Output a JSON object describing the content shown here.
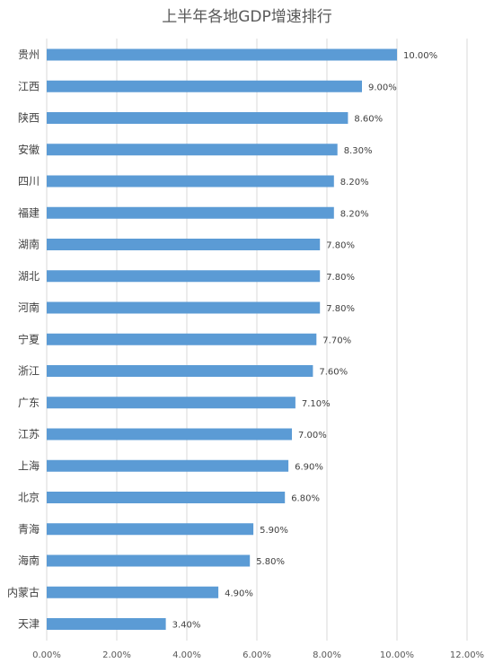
{
  "chart_data": {
    "type": "bar",
    "orientation": "horizontal",
    "title": "上半年各地GDP增速排行",
    "xlabel": "",
    "ylabel": "",
    "xlim": [
      0,
      12
    ],
    "x_ticks": [
      "0.00%",
      "2.00%",
      "4.00%",
      "6.00%",
      "8.00%",
      "10.00%",
      "12.00%"
    ],
    "grid": "vertical",
    "bar_color": "#5b9bd5",
    "categories": [
      "贵州",
      "江西",
      "陕西",
      "安徽",
      "四川",
      "福建",
      "湖南",
      "湖北",
      "河南",
      "宁夏",
      "浙江",
      "广东",
      "江苏",
      "上海",
      "北京",
      "青海",
      "海南",
      "内蒙古",
      "天津"
    ],
    "values": [
      10.0,
      9.0,
      8.6,
      8.3,
      8.2,
      8.2,
      7.8,
      7.8,
      7.8,
      7.7,
      7.6,
      7.1,
      7.0,
      6.9,
      6.8,
      5.9,
      5.8,
      4.9,
      3.4
    ],
    "data_labels": [
      "10.00%",
      "9.00%",
      "8.60%",
      "8.30%",
      "8.20%",
      "8.20%",
      "7.80%",
      "7.80%",
      "7.80%",
      "7.70%",
      "7.60%",
      "7.10%",
      "7.00%",
      "6.90%",
      "6.80%",
      "5.90%",
      "5.80%",
      "4.90%",
      "3.40%"
    ]
  }
}
